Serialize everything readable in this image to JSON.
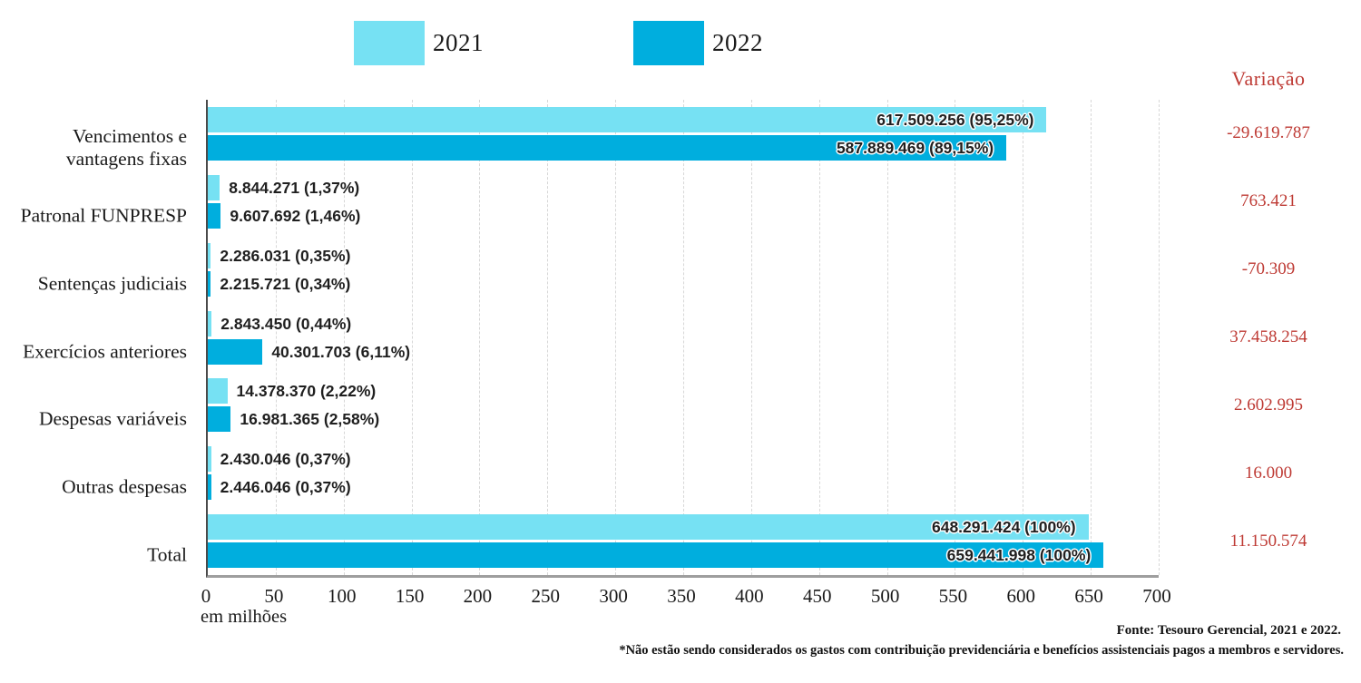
{
  "colors": {
    "series_2021": "#76e1f3",
    "series_2022": "#00aede",
    "variation_text": "#be3a34",
    "axis_left": "#4a4a4a",
    "axis_bottom": "#9e9e9e",
    "gridline": "#d7d7d7"
  },
  "legend": [
    {
      "label": "2021",
      "color": "#76e1f3"
    },
    {
      "label": "2022",
      "color": "#00aede"
    }
  ],
  "variation_header": "Variação",
  "x_axis_unit": "em milhões",
  "footer": {
    "source": "Fonte: Tesouro Gerencial, 2021 e 2022.",
    "note": "*Não estão sendo considerados os gastos com contribuição previdenciária e benefícios assistenciais pagos a membros e servidores."
  },
  "chart_data": {
    "type": "bar",
    "orientation": "horizontal",
    "title": "",
    "xlabel": "em milhões",
    "ylabel": "",
    "xlim": [
      0,
      700
    ],
    "x_ticks": [
      0,
      50,
      100,
      150,
      200,
      250,
      300,
      350,
      400,
      450,
      500,
      550,
      600,
      650,
      700
    ],
    "grid": "vertical-dashed",
    "legend_position": "top",
    "categories": [
      "Vencimentos e\nvantagens fixas",
      "Patronal FUNPRESP",
      "Sentenças judiciais",
      "Exercícios anteriores",
      "Despesas variáveis",
      "Outras despesas",
      "Total"
    ],
    "series": [
      {
        "name": "2021",
        "color": "#76e1f3",
        "values_millions": [
          617.509256,
          8.844271,
          2.286031,
          2.84345,
          14.37837,
          2.430046,
          648.291424
        ],
        "labels": [
          "617.509.256 (95,25%)",
          "8.844.271 (1,37%)",
          "2.286.031 (0,35%)",
          "2.843.450 (0,44%)",
          "14.378.370 (2,22%)",
          "2.430.046 (0,37%)",
          "648.291.424 (100%)"
        ]
      },
      {
        "name": "2022",
        "color": "#00aede",
        "values_millions": [
          587.889469,
          9.607692,
          2.215721,
          40.301703,
          16.981365,
          2.446046,
          659.441998
        ],
        "labels": [
          "587.889.469 (89,15%)",
          "9.607.692 (1,46%)",
          "2.215.721 (0,34%)",
          "40.301.703 (6,11%)",
          "16.981.365 (2,58%)",
          "2.446.046 (0,37%)",
          "659.441.998 (100%)"
        ]
      }
    ],
    "labels_inside": [
      true,
      false,
      false,
      false,
      false,
      false,
      true
    ],
    "variation": [
      "-29.619.787",
      "763.421",
      "-70.309",
      "37.458.254",
      "2.602.995",
      "16.000",
      "11.150.574"
    ]
  }
}
